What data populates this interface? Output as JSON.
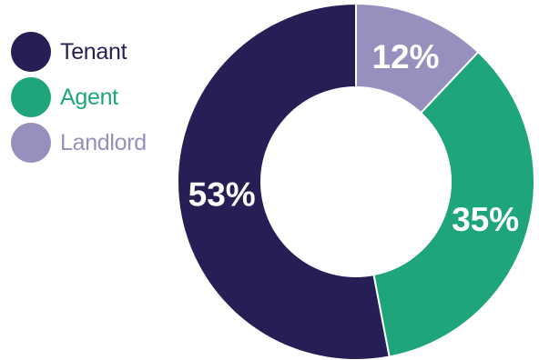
{
  "chart_data": {
    "type": "pie",
    "variant": "donut",
    "categories": [
      "Tenant",
      "Agent",
      "Landlord"
    ],
    "values": [
      53,
      35,
      12
    ],
    "labels": [
      "53%",
      "35%",
      "12%"
    ],
    "colors": [
      "#261f55",
      "#1ea57b",
      "#9590bd"
    ],
    "legend_text_colors": [
      "#261f55",
      "#1ea57b",
      "#9590bd"
    ],
    "legend_position": "top-left",
    "start": "12 o'clock",
    "direction": "counterclockwise from Tenant, so Landlord sits at top-right"
  }
}
